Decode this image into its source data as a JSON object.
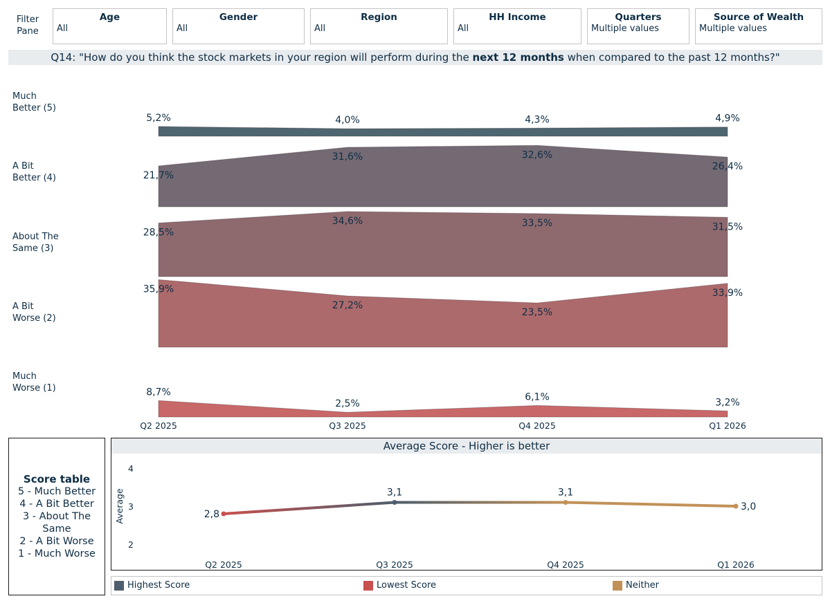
{
  "filter_pane_label": "Filter\nPane",
  "filters": [
    {
      "title": "Age",
      "value": "All"
    },
    {
      "title": "Gender",
      "value": "All"
    },
    {
      "title": "Region",
      "value": "All"
    },
    {
      "title": "HH Income",
      "value": "All"
    },
    {
      "title": "Quarters",
      "value": "Multiple values"
    },
    {
      "title": "Source of Wealth",
      "value": "Multiple values"
    }
  ],
  "question": {
    "prefix": "Q14: \"How do you think the stock markets in your region will perform during the ",
    "bold": "next 12 months",
    "suffix": " when compared to the past 12 months?\""
  },
  "row_labels": [
    "Much\nBetter (5)",
    "A Bit\nBetter (4)",
    "About The\nSame (3)",
    "A Bit\nWorse (2)",
    "Much\nWorse (1)"
  ],
  "score_table": {
    "title": "Score table",
    "lines": [
      "5 - Much Better",
      "4 - A Bit Better",
      "3 - About The Same",
      "2 - A Bit Worse",
      "1 - Much Worse"
    ]
  },
  "colors": {
    "much_better": "#4d6670",
    "a_bit_better": "#736a74",
    "about_same": "#8e6a6f",
    "a_bit_worse": "#ad6a6c",
    "much_worse": "#c96868",
    "highest": "#4e5e6c",
    "lowest": "#c8504f",
    "neither": "#c29158"
  },
  "chart_data": [
    {
      "type": "area",
      "title": "",
      "categories": [
        "Q2 2025",
        "Q3 2025",
        "Q4 2025",
        "Q1 2026"
      ],
      "value_format": "percent",
      "series": [
        {
          "name": "Much Better (5)",
          "values": [
            5.2,
            4.0,
            4.3,
            4.9
          ],
          "labels": [
            "5,2%",
            "4,0%",
            "4,3%",
            "4,9%"
          ]
        },
        {
          "name": "A Bit Better (4)",
          "values": [
            21.7,
            31.6,
            32.6,
            26.4
          ],
          "labels": [
            "21,7%",
            "31,6%",
            "32,6%",
            "26,4%"
          ]
        },
        {
          "name": "About The Same (3)",
          "values": [
            28.5,
            34.6,
            33.5,
            31.5
          ],
          "labels": [
            "28,5%",
            "34,6%",
            "33,5%",
            "31,5%"
          ]
        },
        {
          "name": "A Bit Worse (2)",
          "values": [
            35.9,
            27.2,
            23.5,
            33.9
          ],
          "labels": [
            "35,9%",
            "27,2%",
            "23,5%",
            "33,9%"
          ]
        },
        {
          "name": "Much Worse (1)",
          "values": [
            8.7,
            2.5,
            6.1,
            3.2
          ],
          "labels": [
            "8,7%",
            "2,5%",
            "6,1%",
            "3,2%"
          ]
        }
      ],
      "ylim": [
        0,
        38
      ]
    },
    {
      "type": "line",
      "title": "Average Score - Higher is better",
      "categories": [
        "Q2 2025",
        "Q3 2025",
        "Q4 2025",
        "Q1 2026"
      ],
      "ylabel": "Average",
      "yticks": [
        "2",
        "3",
        "4"
      ],
      "ylim": [
        2,
        4
      ],
      "series": [
        {
          "name": "Average",
          "values": [
            2.8,
            3.1,
            3.1,
            3.0
          ],
          "labels": [
            "2,8",
            "3,1",
            "3,1",
            "3,0"
          ],
          "point_class": [
            "lowest",
            "highest",
            "neither",
            "neither"
          ]
        }
      ],
      "legend": [
        "Highest Score",
        "Lowest Score",
        "Neither"
      ]
    }
  ]
}
